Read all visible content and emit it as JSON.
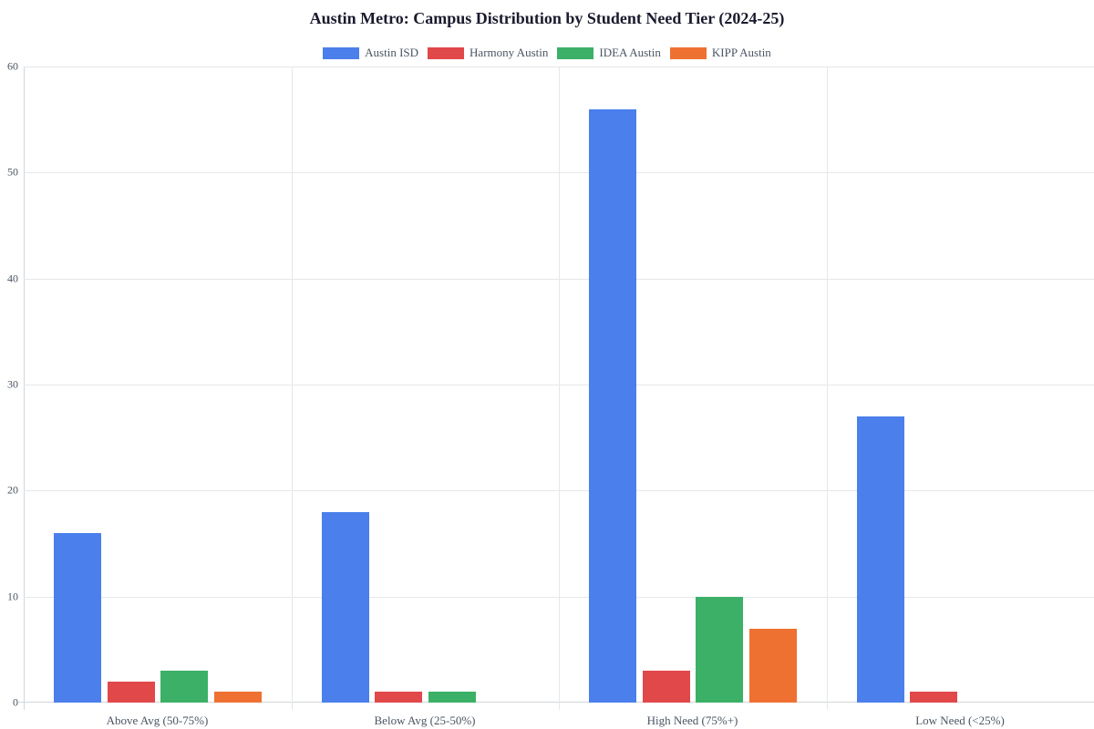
{
  "chart_data": {
    "type": "bar",
    "title": "Austin Metro: Campus Distribution by Student Need Tier (2024-25)",
    "xlabel": "",
    "ylabel": "",
    "ylim": [
      0,
      60
    ],
    "yticks": [
      0,
      10,
      20,
      30,
      40,
      50,
      60
    ],
    "grid": true,
    "legend_position": "top",
    "categories": [
      "Above Avg (50-75%)",
      "Below Avg (25-50%)",
      "High Need (75%+)",
      "Low Need (<25%)"
    ],
    "series": [
      {
        "name": "Austin ISD",
        "color": "#4a7fec",
        "values": [
          16,
          18,
          56,
          27
        ]
      },
      {
        "name": "Harmony Austin",
        "color": "#e0484a",
        "values": [
          2,
          1,
          3,
          1
        ]
      },
      {
        "name": "IDEA Austin",
        "color": "#3cb067",
        "values": [
          3,
          1,
          10,
          0
        ]
      },
      {
        "name": "KIPP Austin",
        "color": "#ee7132",
        "values": [
          1,
          0,
          7,
          0
        ]
      }
    ]
  }
}
